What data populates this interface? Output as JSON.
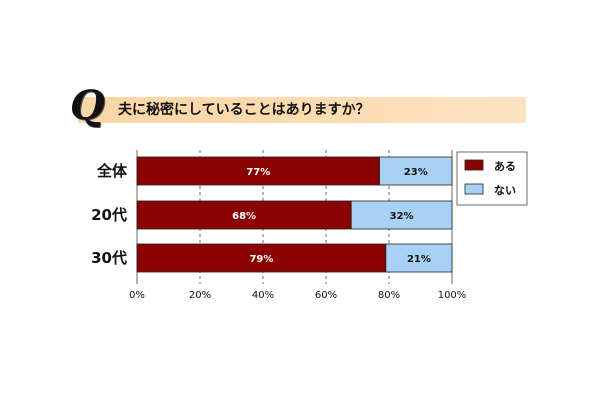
{
  "question": {
    "mark": "Q",
    "text": "夫に秘密にしていることはありますか？"
  },
  "chart_data": {
    "type": "bar",
    "orientation": "horizontal",
    "stacked": true,
    "percent": true,
    "categories": [
      "全体",
      "20代",
      "30代"
    ],
    "series": [
      {
        "name": "ある",
        "values": [
          77,
          68,
          79
        ],
        "color": "#8b0000",
        "label_color": "#ffffff"
      },
      {
        "name": "ない",
        "values": [
          23,
          32,
          21
        ],
        "color": "#a9d0f5",
        "label_color": "#111111"
      }
    ],
    "value_labels": [
      [
        "77%",
        "68%",
        "79%"
      ],
      [
        "23%",
        "32%",
        "21%"
      ]
    ],
    "xlim": [
      0,
      100
    ],
    "ticks": [
      0,
      20,
      40,
      60,
      80,
      100
    ],
    "tick_labels": [
      "0%",
      "20%",
      "40%",
      "60%",
      "80%",
      "100%"
    ],
    "grid": true,
    "legend_position": "right"
  }
}
